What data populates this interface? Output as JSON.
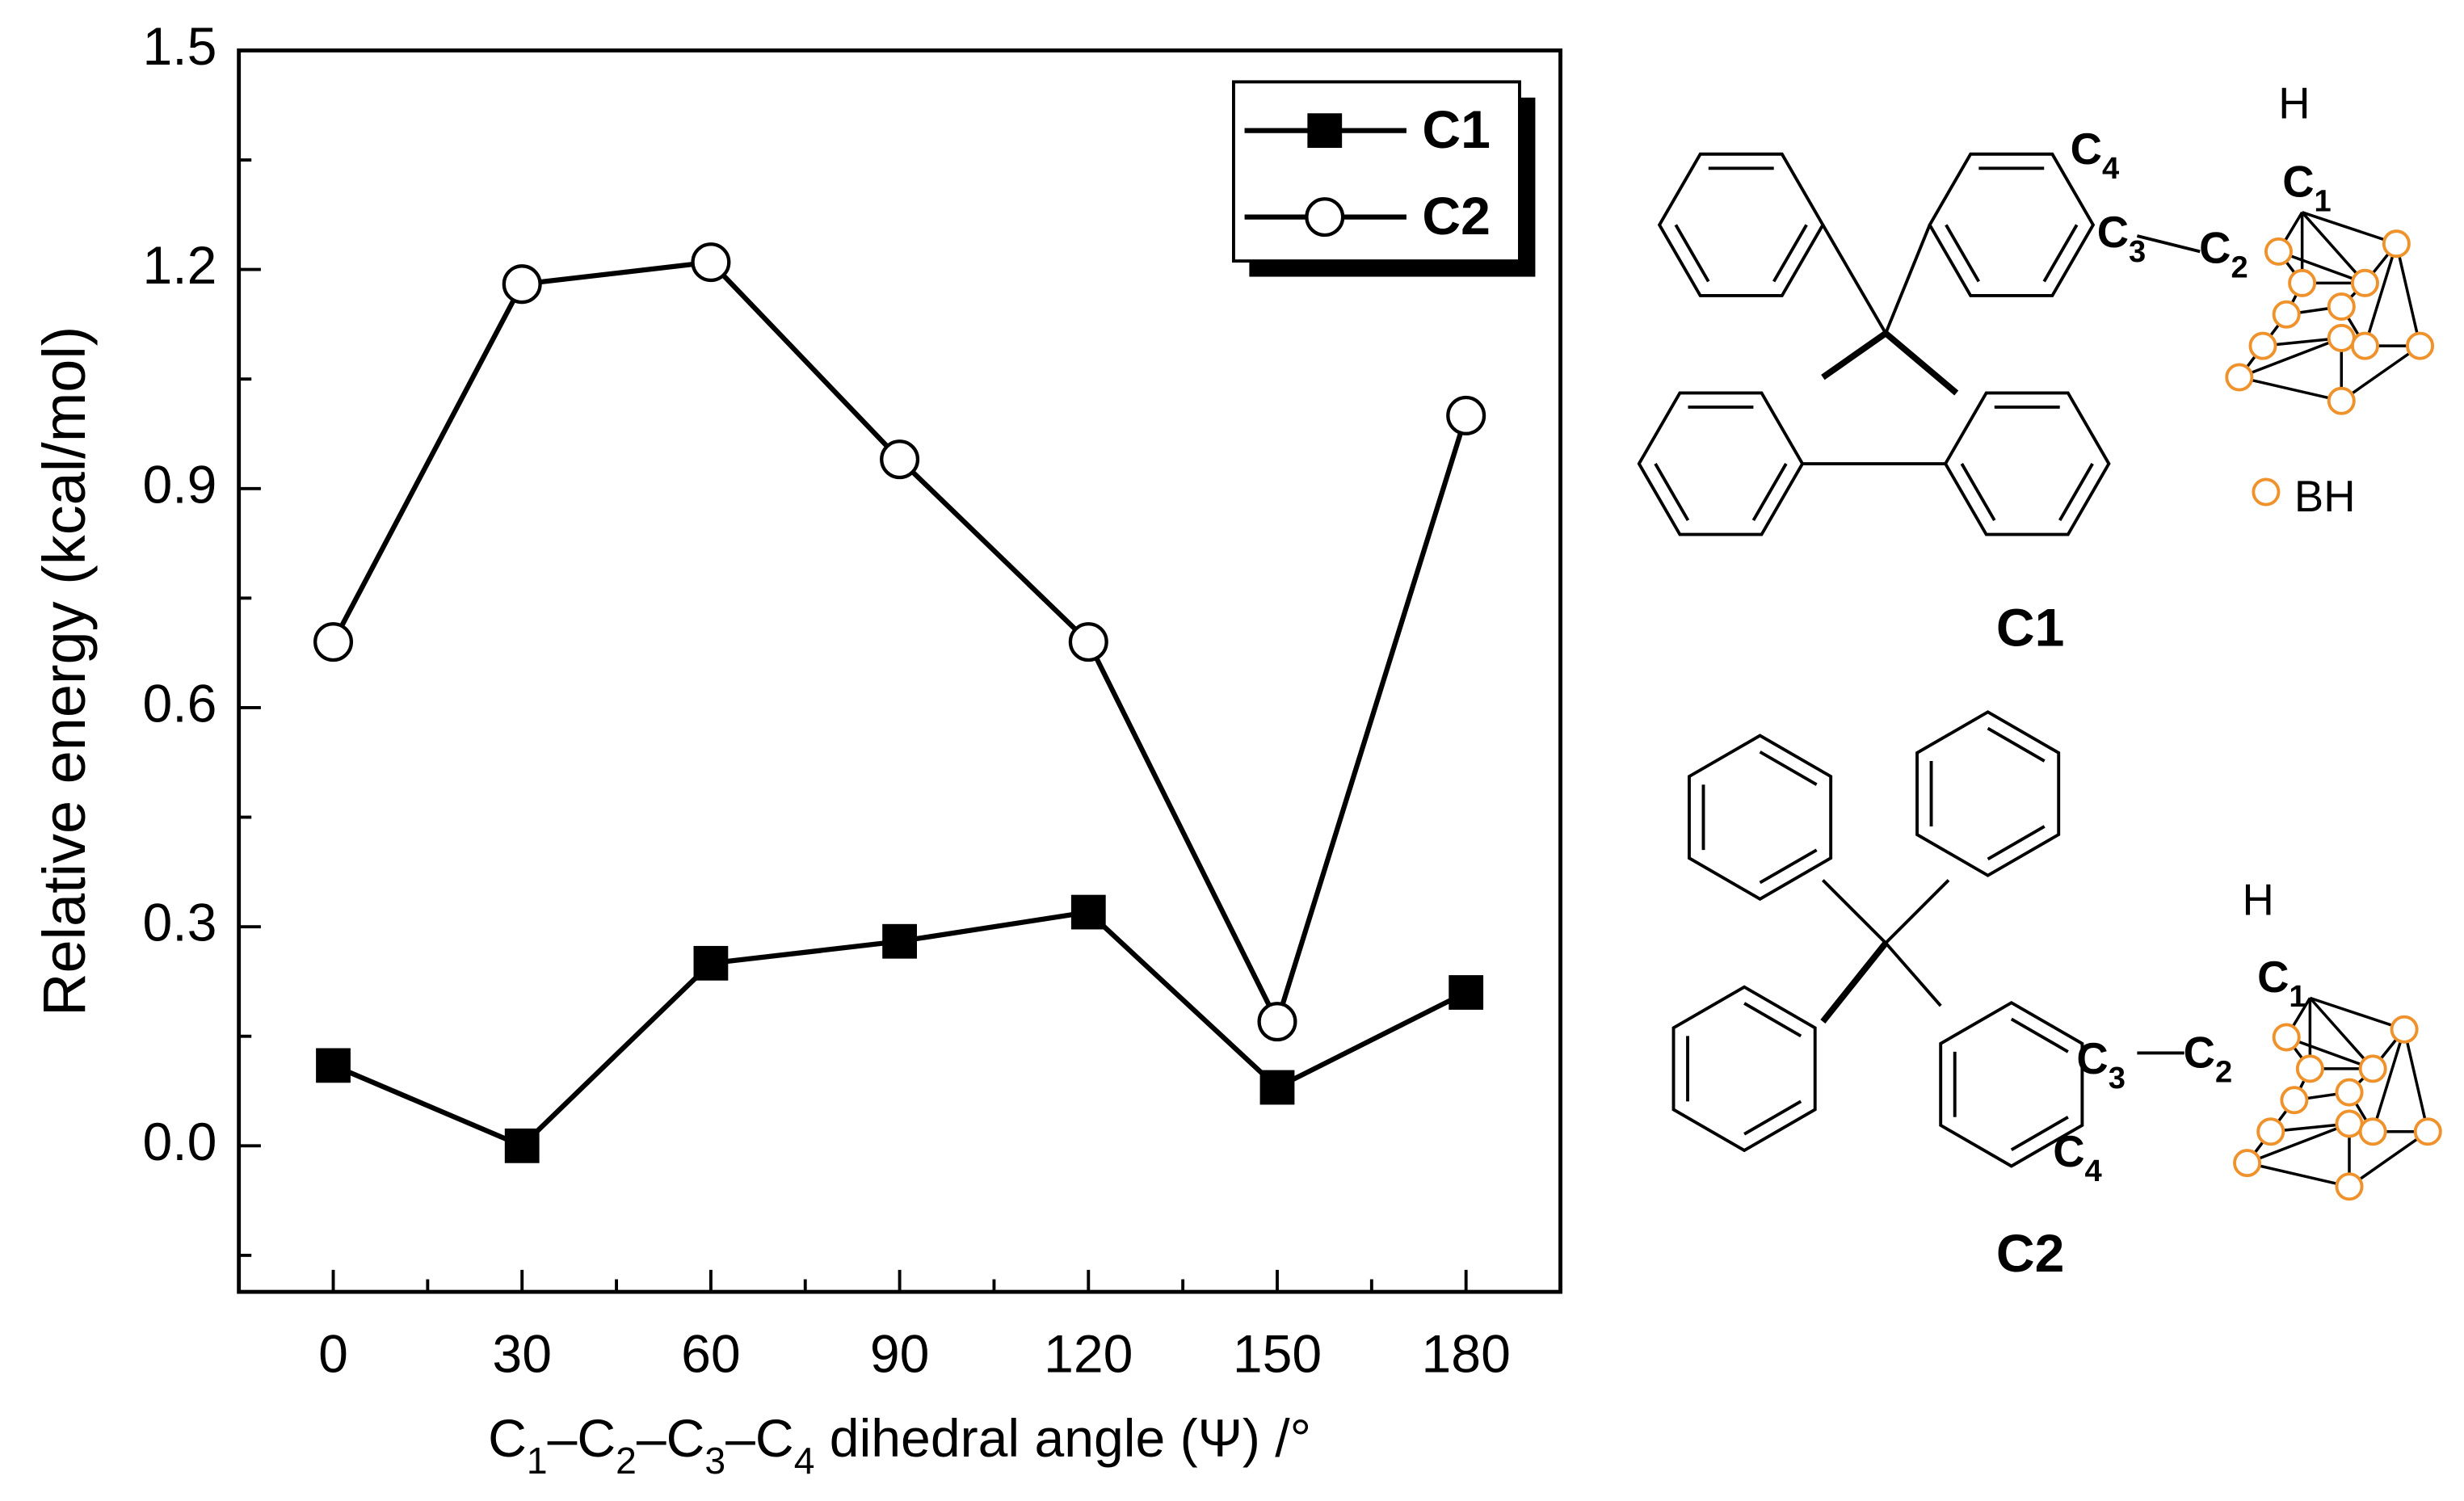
{
  "chart_data": {
    "type": "line",
    "x_label": "C1–C2–C3–C4 dihedral angle (Ψ) /°",
    "y_label": "Relative energy (kcal/mol)",
    "x": [
      0,
      30,
      60,
      90,
      120,
      150,
      180
    ],
    "xlim": [
      -15,
      195
    ],
    "xticks": [
      0,
      30,
      60,
      90,
      120,
      150,
      180
    ],
    "ylim": [
      -0.2,
      1.5
    ],
    "yticks": [
      {
        "value": 0,
        "label": "0.0"
      },
      0.3,
      0.6,
      0.9,
      1.2,
      1.5
    ],
    "legend": "upper right",
    "series": [
      {
        "name": "C1",
        "color": "#000000",
        "marker": "filled-square",
        "values": [
          0.11,
          0.0,
          0.25,
          0.28,
          0.32,
          0.08,
          0.21
        ]
      },
      {
        "name": "C2",
        "color": "#000000",
        "marker": "open-circle",
        "values": [
          0.69,
          1.18,
          1.21,
          0.94,
          0.69,
          0.17,
          1.0
        ]
      }
    ]
  },
  "structures": [
    {
      "name": "C1",
      "atoms": [
        "H",
        "C1",
        "C2",
        "C3",
        "C4"
      ]
    },
    {
      "name": "C2",
      "atoms": [
        "H",
        "C1",
        "C2",
        "C3",
        "C4"
      ]
    }
  ],
  "cage_legend": "BH"
}
